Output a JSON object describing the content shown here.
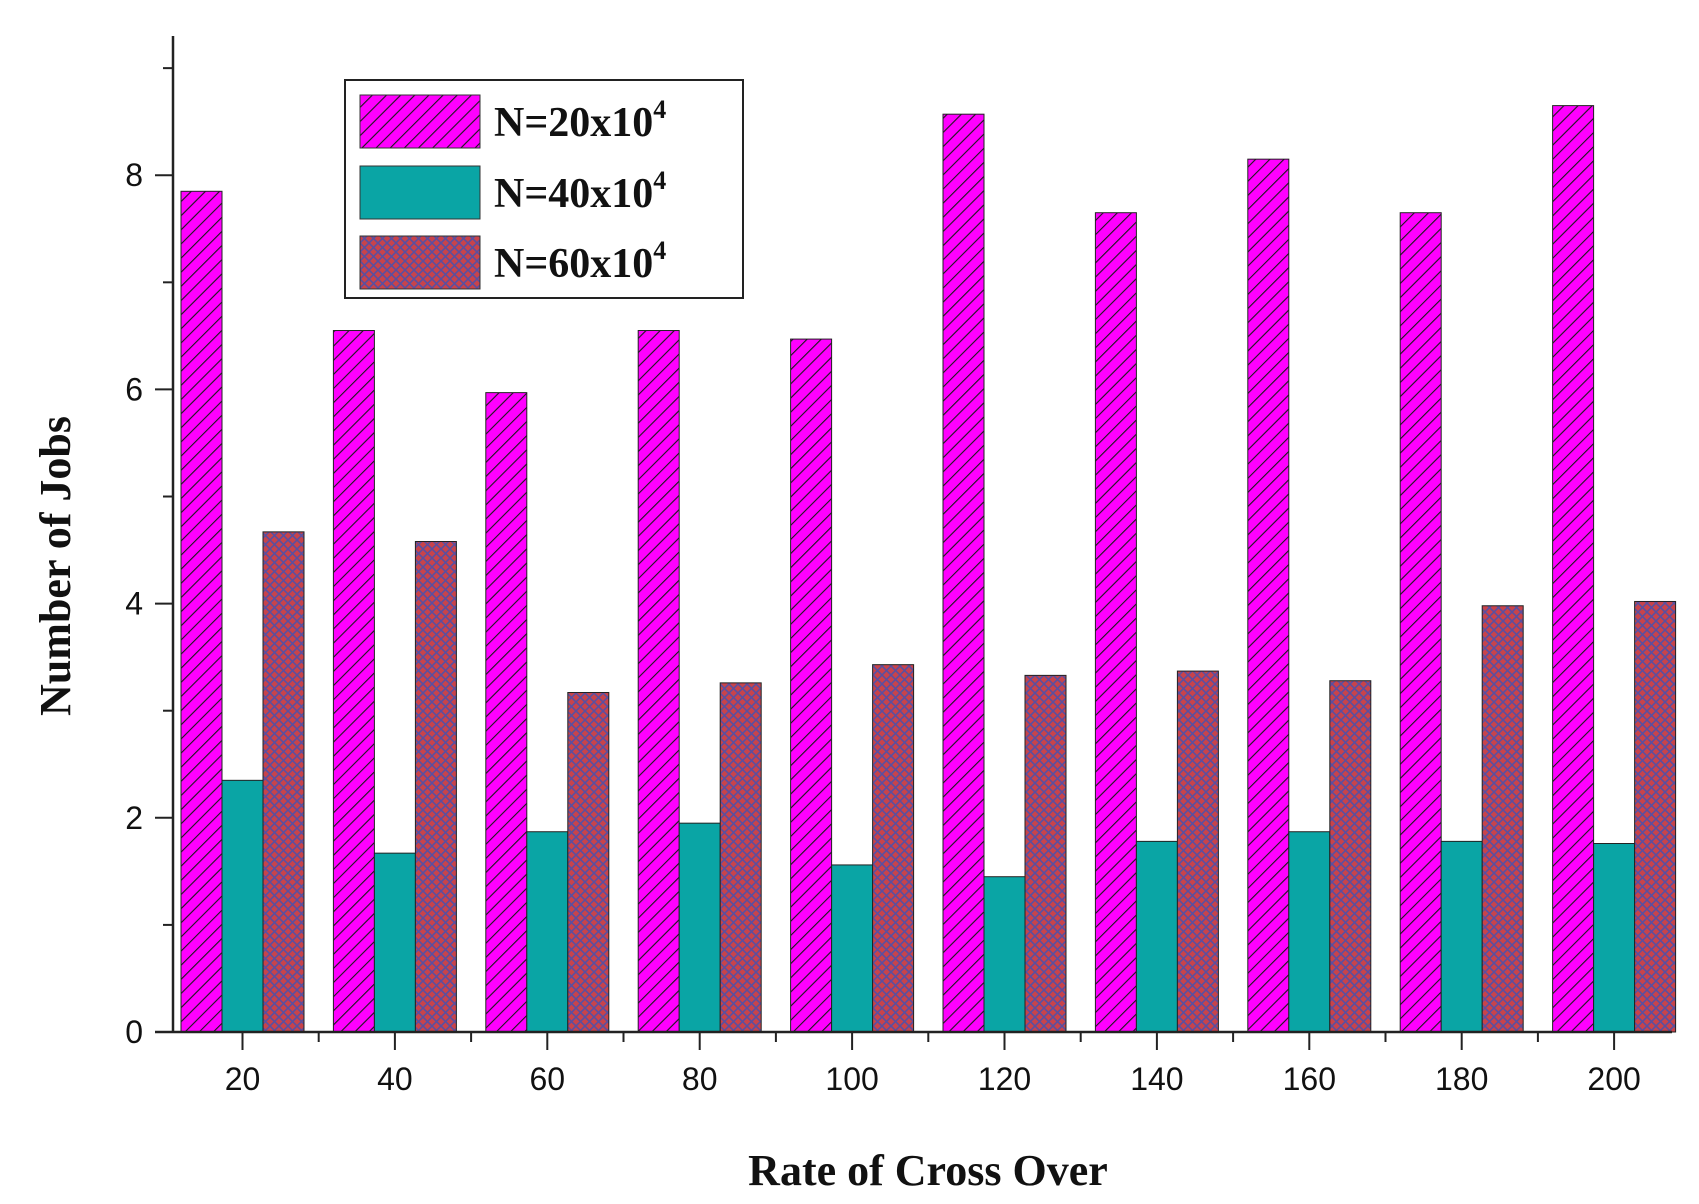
{
  "chart_data": {
    "type": "bar",
    "title": "",
    "xlabel": "Rate of Cross Over",
    "ylabel": "Number of Jobs",
    "categories": [
      "20",
      "40",
      "60",
      "80",
      "100",
      "120",
      "140",
      "160",
      "180",
      "200"
    ],
    "ylim": [
      0,
      9.3
    ],
    "yticks": [
      0,
      2,
      4,
      6,
      8
    ],
    "ytick_labels": [
      "0",
      "2",
      "4",
      "6",
      "8"
    ],
    "grid": false,
    "legend_position": "top-left",
    "series": [
      {
        "name_base": "N=20x10",
        "name_sup": "4",
        "color": "#ff00ff",
        "pattern": "diagonal-hatch",
        "values": [
          7.85,
          6.55,
          5.97,
          6.55,
          6.47,
          8.57,
          7.65,
          8.15,
          7.65,
          8.65
        ]
      },
      {
        "name_base": "N=40x10",
        "name_sup": "4",
        "color": "#0aa5a5",
        "pattern": "solid",
        "values": [
          2.35,
          1.67,
          1.87,
          1.95,
          1.56,
          1.45,
          1.78,
          1.87,
          1.78,
          1.76
        ]
      },
      {
        "name_base": "N=60x10",
        "name_sup": "4",
        "color": "#c0404a",
        "pattern": "crosshatch",
        "values": [
          4.67,
          4.58,
          3.17,
          3.26,
          3.43,
          3.33,
          3.37,
          3.28,
          3.98,
          4.02
        ]
      }
    ]
  }
}
